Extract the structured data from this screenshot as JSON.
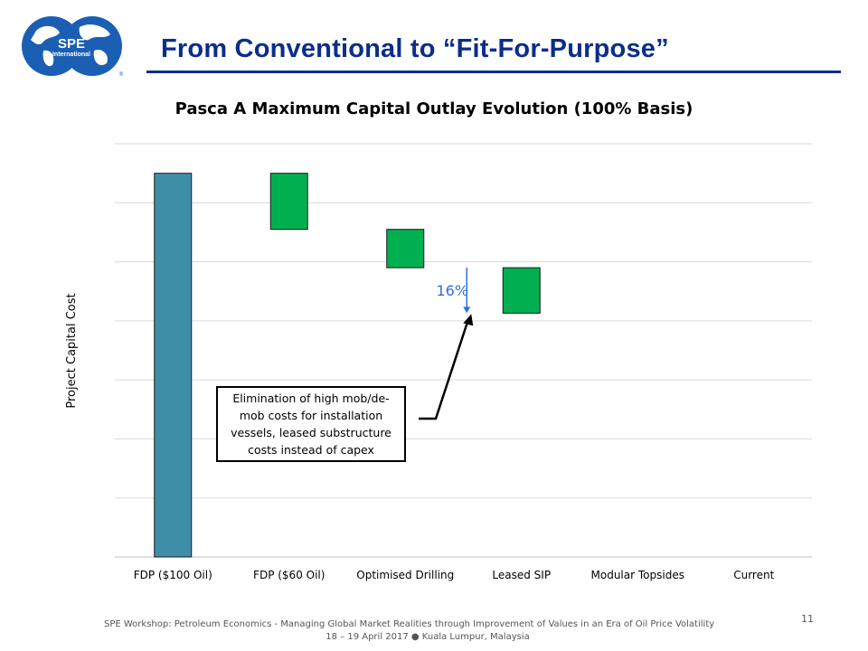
{
  "header": {
    "title": "From Conventional to “Fit-For-Purpose”",
    "logo_text_main": "SPE",
    "logo_text_sub": "International",
    "logo_mark": "®"
  },
  "chart_data": {
    "type": "bar",
    "subtype": "waterfall",
    "title": "Pasca A Maximum Capital Outlay Evolution (100% Basis)",
    "xlabel": "",
    "ylabel": "Project Capital Cost",
    "ylim": [
      0,
      7
    ],
    "grid": true,
    "categories": [
      "FDP ($100 Oil)",
      "FDP ($60 Oil)",
      "Optimised Drilling",
      "Leased SIP",
      "Modular Topsides",
      "Current"
    ],
    "values": [
      {
        "base": 0,
        "top": 6.5
      },
      {
        "base": 5.55,
        "top": 6.5
      },
      {
        "base": 4.9,
        "top": 5.55
      },
      {
        "base": 4.13,
        "top": 4.9
      },
      null,
      null
    ],
    "colors": {
      "total": "#3f8ea8",
      "step": "#00b050",
      "annotation": "#2f6fe0"
    },
    "annotations": [
      {
        "text": "16%",
        "x_category": "Leased SIP",
        "from": 4.9,
        "to": 4.13
      }
    ],
    "callout": "Elimination of high mob/de-mob costs for installation vessels, leased substructure costs instead of capex"
  },
  "footer": {
    "line1": "SPE Workshop: Petroleum Economics - Managing Global Market Realities through Improvement of Values in an Era of Oil Price Volatility",
    "line2": "18 – 19 April 2017 ● Kuala Lumpur, Malaysia",
    "page": "11"
  }
}
